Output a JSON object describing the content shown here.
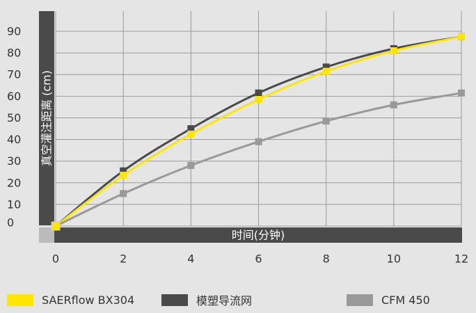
{
  "chart_data": {
    "type": "line",
    "xlabel": "时间(分钟)",
    "ylabel": "真空灌注距离 (cm)",
    "x": [
      0,
      2,
      4,
      6,
      8,
      10,
      12
    ],
    "xticks": [
      "0",
      "2",
      "4",
      "6",
      "8",
      "10",
      "12"
    ],
    "yticks": [
      "0",
      "10",
      "20",
      "30",
      "40",
      "50",
      "60",
      "70",
      "80",
      "90"
    ],
    "xlim": [
      0,
      12
    ],
    "ylim": [
      0,
      90
    ],
    "grid": true,
    "legend_position": "bottom",
    "series": [
      {
        "name": "模塑导流网",
        "color": "#4a4a4a",
        "values": [
          0,
          25.5,
          45,
          61.5,
          73.5,
          82,
          87.5
        ]
      },
      {
        "name": "SAERflow BX304",
        "color": "#ffe600",
        "values": [
          0,
          23.5,
          42.5,
          58.5,
          71.5,
          81,
          87.5
        ]
      },
      {
        "name": "CFM 450",
        "color": "#999999",
        "values": [
          0,
          15,
          28,
          39,
          48.5,
          56,
          61.5
        ]
      }
    ],
    "legend": [
      {
        "name": "SAERflow BX304",
        "color": "#ffe600"
      },
      {
        "name": "模塑导流网",
        "color": "#4a4a4a"
      },
      {
        "name": "CFM 450",
        "color": "#999999"
      }
    ]
  }
}
